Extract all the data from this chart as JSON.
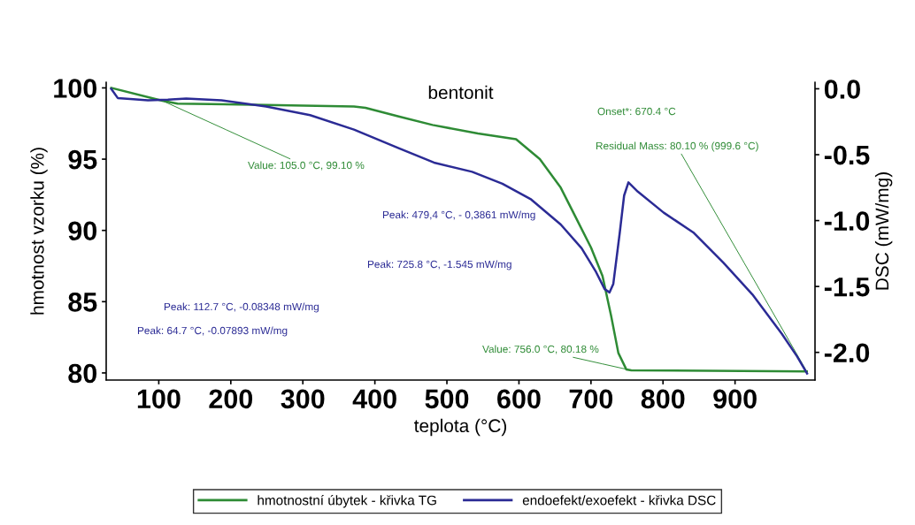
{
  "chart_data": {
    "type": "line",
    "title": "bentonit",
    "xlabel": "teplota (°C)",
    "ylabel": "hmotnost vzorku (%)",
    "y2label": "DSC (mW/mg)",
    "xlim": [
      27,
      1011
    ],
    "xticks": [
      100,
      200,
      300,
      400,
      500,
      600,
      700,
      800,
      900
    ],
    "ylim": [
      79.5,
      100.4
    ],
    "yticks": [
      80,
      85,
      90,
      95,
      100
    ],
    "y2lim": [
      -2.21,
      0.05
    ],
    "y2ticks": [
      {
        "value": 0,
        "label": "0.0"
      },
      {
        "value": -0.5,
        "label": "-0.5"
      },
      {
        "value": -1.0,
        "label": "-1.0"
      },
      {
        "value": -1.5,
        "label": "-1.5"
      },
      {
        "value": -2.0,
        "label": "-2.0"
      }
    ],
    "legend": "bottom",
    "grid": false,
    "series": [
      {
        "name": "hmotnostní úbytek - křivka TG",
        "color": "#2e8b35",
        "x": [
          34,
          105,
          126,
          249,
          371,
          387,
          433,
          480,
          543,
          596,
          629,
          658,
          679,
          700,
          716,
          728,
          738,
          749,
          756,
          863,
          999.6
        ],
        "values": [
          100.0,
          99.1,
          98.9,
          98.8,
          98.7,
          98.6,
          98.0,
          97.4,
          96.8,
          96.4,
          95.0,
          93.0,
          90.9,
          88.8,
          86.8,
          84.0,
          81.4,
          80.25,
          80.18,
          80.15,
          80.1
        ]
      },
      {
        "name": "endoefekt/exoefekt - křivka DSC",
        "color": "#2b2b95",
        "axis": "y2",
        "x": [
          34,
          43,
          64.7,
          85,
          112.7,
          138,
          187,
          249,
          310,
          371,
          433,
          482,
          535,
          577,
          617,
          658,
          687,
          707,
          719,
          725.8,
          731,
          740,
          746,
          752,
          765,
          801,
          842,
          884,
          924,
          965,
          986,
          1000
        ],
        "values": [
          0.0,
          -0.07,
          -0.079,
          -0.087,
          -0.083,
          -0.074,
          -0.087,
          -0.134,
          -0.2,
          -0.31,
          -0.45,
          -0.56,
          -0.63,
          -0.72,
          -0.84,
          -1.03,
          -1.21,
          -1.39,
          -1.52,
          -1.545,
          -1.48,
          -1.09,
          -0.81,
          -0.71,
          -0.78,
          -0.94,
          -1.09,
          -1.32,
          -1.56,
          -1.86,
          -2.03,
          -2.16
        ]
      }
    ],
    "annotations": [
      {
        "text": "Value: 105.0 °C, 99.10 %",
        "x": 105.0,
        "y": 99.1
      },
      "Onset*: 670.4 °C",
      {
        "text": "Residual Mass: 80.10 % (999.6 °C)",
        "x": 999.6,
        "y": 80.1
      },
      "Peak: 479,4 °C, - 0,3861 mW/mg",
      "Peak: 725.8 °C, -1.545 mW/mg",
      "Peak: 112.7 °C, -0.08348 mW/mg",
      "Peak: 64.7 °C, -0.07893 mW/mg",
      {
        "text": "Value: 756.0 °C, 80.18 %",
        "x": 756.0,
        "y": 80.18
      }
    ]
  }
}
